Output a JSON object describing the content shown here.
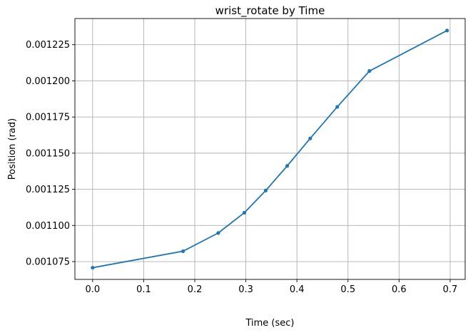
{
  "chart_data": {
    "type": "line",
    "title": "wrist_rotate by Time",
    "xlabel": "Time (sec)",
    "ylabel": "Position (rad)",
    "xlim": [
      -0.0347,
      0.7294
    ],
    "ylim": [
      0.0010627,
      0.0012431
    ],
    "xticks": [
      0.0,
      0.1,
      0.2,
      0.3,
      0.4,
      0.5,
      0.6,
      0.7
    ],
    "xtick_labels": [
      "0.0",
      "0.1",
      "0.2",
      "0.3",
      "0.4",
      "0.5",
      "0.6",
      "0.7"
    ],
    "yticks": [
      0.001075,
      0.0011,
      0.001125,
      0.00115,
      0.001175,
      0.0012,
      0.001225
    ],
    "ytick_labels": [
      "0.001075",
      "0.001100",
      "0.001125",
      "0.001150",
      "0.001175",
      "0.001200",
      "0.001225"
    ],
    "grid": true,
    "series_color": "#1f77b4",
    "series": [
      {
        "x": [
          0.0,
          0.177,
          0.246,
          0.297,
          0.339,
          0.381,
          0.426,
          0.479,
          0.542,
          0.694
        ],
        "y": [
          0.0010708,
          0.0010822,
          0.0010948,
          0.0011088,
          0.0011242,
          0.0011412,
          0.0011602,
          0.001182,
          0.0012068,
          0.0012348
        ]
      }
    ]
  }
}
